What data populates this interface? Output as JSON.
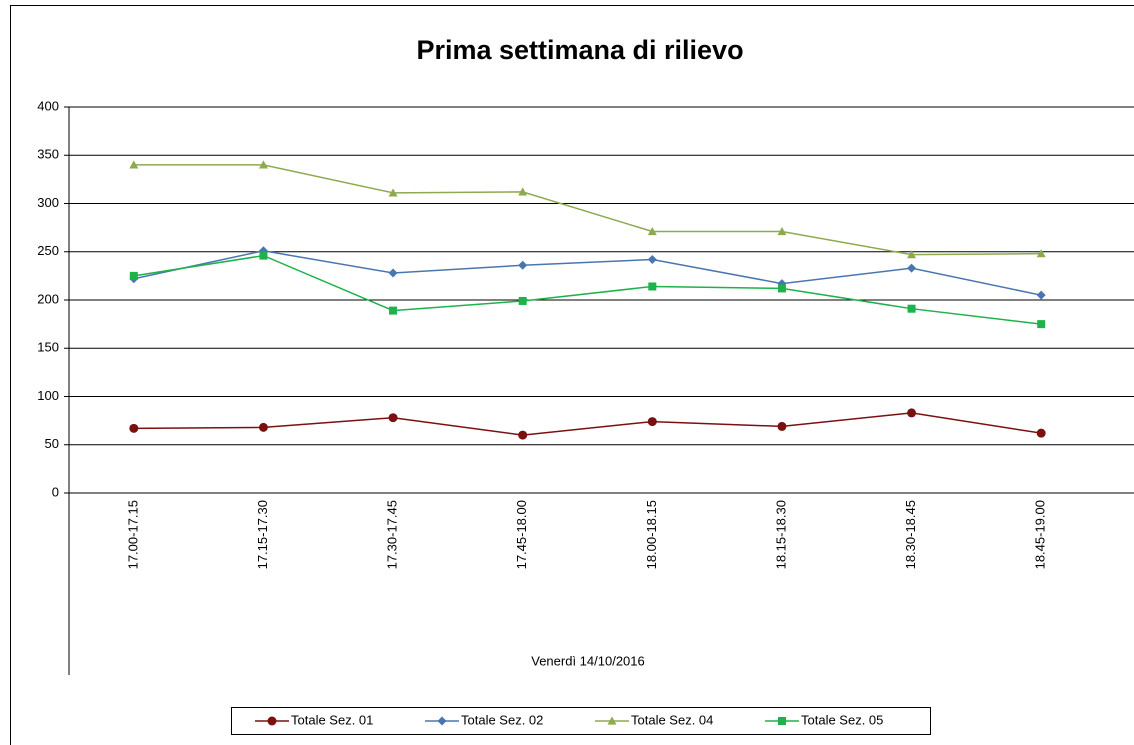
{
  "chart_data": {
    "type": "line",
    "title": "Prima settimana di rilievo",
    "x_label": "Venerdì 14/10/2016",
    "categories": [
      "17.00-17.15",
      "17.15-17.30",
      "17.30-17.45",
      "17.45-18.00",
      "18.00-18.15",
      "18.15-18.30",
      "18.30-18.45",
      "18.45-19.00"
    ],
    "series": [
      {
        "name": "Totale Sez. 01",
        "color": "#7b1010",
        "marker": "circle",
        "values": [
          67,
          68,
          78,
          60,
          74,
          69,
          83,
          62
        ]
      },
      {
        "name": "Totale Sez. 02",
        "color": "#4a76b0",
        "marker": "diamond",
        "values": [
          222,
          251,
          228,
          236,
          242,
          217,
          233,
          205
        ]
      },
      {
        "name": "Totale Sez. 04",
        "color": "#8eaa4e",
        "marker": "triangle",
        "values": [
          340,
          340,
          311,
          312,
          271,
          271,
          247,
          248
        ]
      },
      {
        "name": "Totale Sez. 05",
        "color": "#1db24a",
        "marker": "square",
        "values": [
          225,
          246,
          189,
          199,
          214,
          212,
          191,
          175
        ]
      }
    ],
    "ylim": [
      0,
      400
    ],
    "yticks": [
      0,
      50,
      100,
      150,
      200,
      250,
      300,
      350,
      400
    ],
    "grid": true,
    "legend": "bottom"
  }
}
